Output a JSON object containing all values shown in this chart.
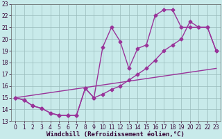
{
  "xlabel": "Windchill (Refroidissement éolien,°C)",
  "xlim": [
    -0.5,
    23.5
  ],
  "ylim": [
    13,
    23
  ],
  "xticks": [
    0,
    1,
    2,
    3,
    4,
    5,
    6,
    7,
    8,
    9,
    10,
    11,
    12,
    13,
    14,
    15,
    16,
    17,
    18,
    19,
    20,
    21,
    22,
    23
  ],
  "yticks": [
    13,
    14,
    15,
    16,
    17,
    18,
    19,
    20,
    21,
    22,
    23
  ],
  "background_color": "#c8eaea",
  "grid_color": "#99bbbb",
  "line_color": "#993399",
  "line1_x": [
    0,
    1,
    2,
    3,
    4,
    5,
    6,
    7,
    8,
    9,
    10,
    11,
    12,
    13,
    14,
    15,
    16,
    17,
    18,
    19,
    20,
    21,
    22,
    23
  ],
  "line1_y": [
    15.0,
    14.8,
    14.3,
    14.1,
    13.7,
    13.5,
    13.5,
    13.5,
    15.8,
    15.0,
    19.3,
    21.0,
    19.8,
    17.5,
    19.2,
    19.5,
    22.0,
    22.5,
    22.5,
    21.0,
    21.0,
    21.0,
    21.0,
    19.0
  ],
  "line2_x": [
    0,
    1,
    2,
    3,
    4,
    5,
    6,
    7,
    8,
    9,
    10,
    11,
    12,
    13,
    14,
    15,
    16,
    17,
    18,
    19,
    20,
    21,
    22,
    23
  ],
  "line2_y": [
    15.0,
    14.8,
    14.3,
    14.1,
    13.7,
    13.5,
    13.5,
    13.5,
    15.8,
    15.0,
    15.3,
    15.7,
    16.0,
    16.5,
    17.0,
    17.5,
    18.2,
    19.0,
    19.5,
    20.0,
    21.5,
    21.0,
    21.0,
    19.0
  ],
  "line3_x": [
    0,
    23
  ],
  "line3_y": [
    15.0,
    17.5
  ],
  "markersize": 2.5,
  "linewidth": 1.0,
  "tick_fontsize": 5.5,
  "label_fontsize": 6.5
}
